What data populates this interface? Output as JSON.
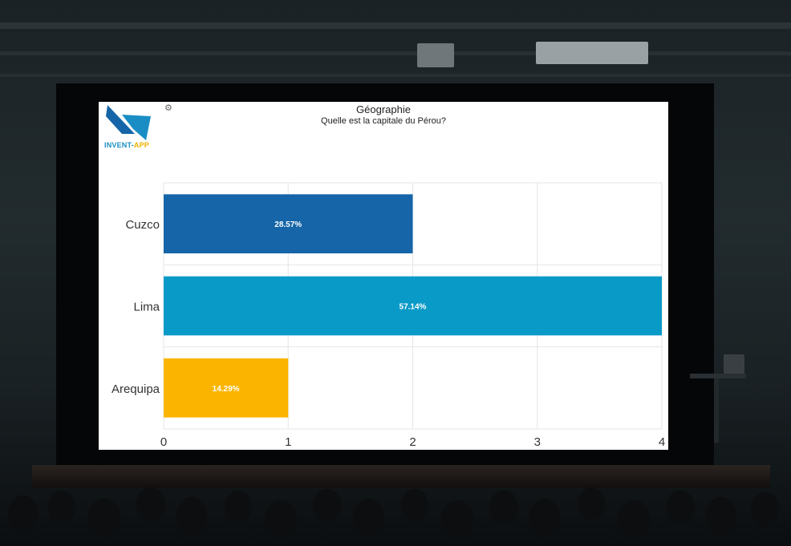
{
  "logo": {
    "text_main": "INVENT-",
    "text_accent": "APP"
  },
  "icons": {
    "settings": "gear-icon"
  },
  "colors": {
    "cuzco": "#1565a8",
    "lima": "#0a9ac7",
    "arequipa": "#fbb500",
    "grid": "#e6e6e6"
  },
  "chart_data": {
    "type": "bar",
    "orientation": "horizontal",
    "title": "Géographie",
    "subtitle": "Quelle est la capitale du Pérou?",
    "categories": [
      "Cuzco",
      "Lima",
      "Arequipa"
    ],
    "values": [
      2,
      4,
      1
    ],
    "data_labels": [
      "28.57%",
      "57.14%",
      "14.29%"
    ],
    "colors": [
      "#1565a8",
      "#0a9ac7",
      "#fbb500"
    ],
    "xlim": [
      0,
      4
    ],
    "xticks": [
      "0",
      "1",
      "2",
      "3",
      "4"
    ],
    "grid": true,
    "legend": "none"
  }
}
